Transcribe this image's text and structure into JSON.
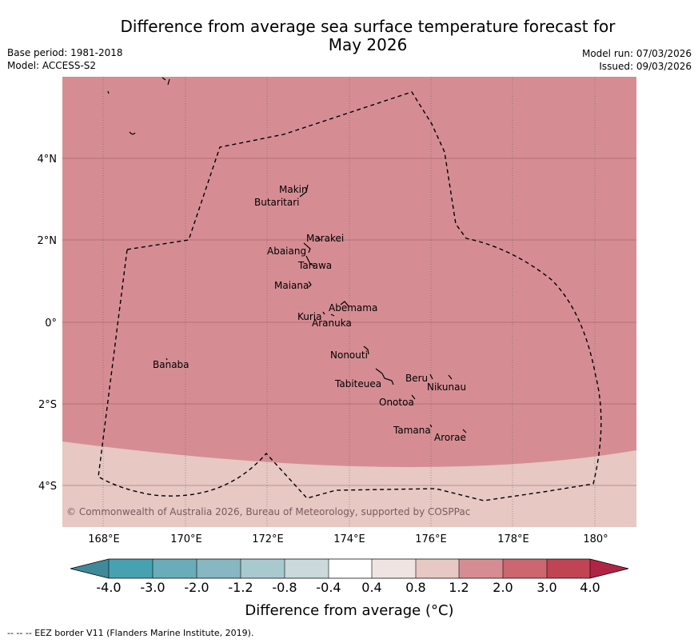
{
  "title_line1": "Difference from average sea surface temperature forecast for",
  "title_line2": "May 2026",
  "base_period": "Base period: 1981-2018",
  "model": "Model: ACCESS-S2",
  "model_run": "Model run: 07/03/2026",
  "issued": "Issued: 09/03/2026",
  "copyright": "© Commonwealth of Australia 2026, Bureau of Meteorology, supported by COSPPac",
  "footer": "--  --  -- EEZ border V11 (Flanders Marine Institute, 2019).",
  "lon_ticks": [
    "168°E",
    "170°E",
    "172°E",
    "174°E",
    "176°E",
    "178°E",
    "180°"
  ],
  "lat_ticks": [
    "4°N",
    "2°N",
    "0°",
    "2°S",
    "4°S"
  ],
  "colorbar": {
    "label": "Difference from average (°C)",
    "ticks": [
      "-4.0",
      "-3.0",
      "-2.0",
      "-1.2",
      "-0.8",
      "-0.4",
      "0.4",
      "0.8",
      "1.2",
      "2.0",
      "3.0",
      "4.0"
    ],
    "colors": [
      "#3e8a9a",
      "#47a1b1",
      "#69acba",
      "#86b7c2",
      "#a8c9ce",
      "#c9d9dc",
      "#ffffff",
      "#efe4e2",
      "#e7c8c3",
      "#d58d93",
      "#cc6670",
      "#c04454",
      "#b02545"
    ]
  },
  "fields": {
    "main_anomaly": "1.2 to 2.0",
    "south_anomaly": "0.8 to 1.2",
    "main_color": "#d58d93",
    "south_color": "#e7c8c3"
  },
  "islands": [
    "Makin",
    "Butaritari",
    "Marakei",
    "Abaiang",
    "Tarawa",
    "Maiana",
    "Abemama",
    "Kuria",
    "Aranuka",
    "Nonouti",
    "Beru",
    "Nikunau",
    "Tabiteuea",
    "Onotoa",
    "Banaba",
    "Tamana",
    "Arorae"
  ]
}
